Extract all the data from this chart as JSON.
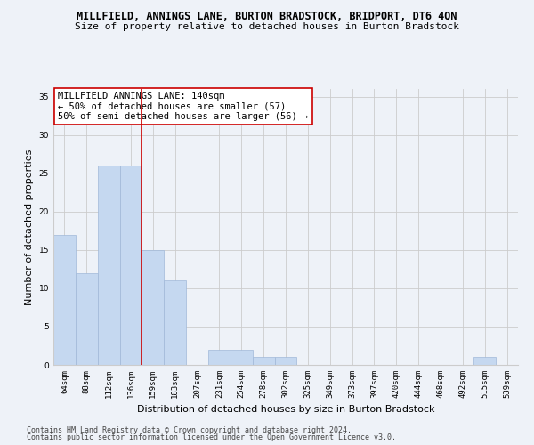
{
  "title": "MILLFIELD, ANNINGS LANE, BURTON BRADSTOCK, BRIDPORT, DT6 4QN",
  "subtitle": "Size of property relative to detached houses in Burton Bradstock",
  "xlabel": "Distribution of detached houses by size in Burton Bradstock",
  "ylabel": "Number of detached properties",
  "categories": [
    "64sqm",
    "88sqm",
    "112sqm",
    "136sqm",
    "159sqm",
    "183sqm",
    "207sqm",
    "231sqm",
    "254sqm",
    "278sqm",
    "302sqm",
    "325sqm",
    "349sqm",
    "373sqm",
    "397sqm",
    "420sqm",
    "444sqm",
    "468sqm",
    "492sqm",
    "515sqm",
    "539sqm"
  ],
  "values": [
    17,
    12,
    26,
    26,
    15,
    11,
    0,
    2,
    2,
    1,
    1,
    0,
    0,
    0,
    0,
    0,
    0,
    0,
    0,
    1,
    0
  ],
  "bar_color": "#c5d8f0",
  "bar_edgecolor": "#a0b8d8",
  "vline_index": 3,
  "vline_color": "#cc0000",
  "annotation_text": "MILLFIELD ANNINGS LANE: 140sqm\n← 50% of detached houses are smaller (57)\n50% of semi-detached houses are larger (56) →",
  "annotation_box_edgecolor": "#cc0000",
  "annotation_box_facecolor": "#ffffff",
  "ylim": [
    0,
    36
  ],
  "yticks": [
    0,
    5,
    10,
    15,
    20,
    25,
    30,
    35
  ],
  "footnote1": "Contains HM Land Registry data © Crown copyright and database right 2024.",
  "footnote2": "Contains public sector information licensed under the Open Government Licence v3.0.",
  "title_fontsize": 8.5,
  "subtitle_fontsize": 8.0,
  "ylabel_fontsize": 8.0,
  "xlabel_fontsize": 8.0,
  "tick_fontsize": 6.5,
  "annotation_fontsize": 7.5,
  "footnote_fontsize": 6.0,
  "background_color": "#eef2f8"
}
